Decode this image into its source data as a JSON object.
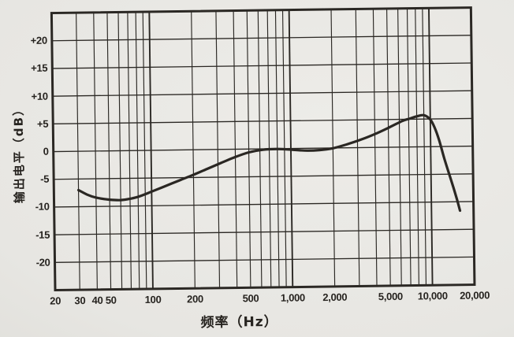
{
  "page": {
    "kind": "scanned textbook figure",
    "paper_color": "#e7e6e2",
    "ink_color": "#282521"
  },
  "chart_data": {
    "type": "line",
    "title": "",
    "xlabel": "频率（Hz）",
    "ylabel": "输出电平（dB）",
    "x_scale": "log",
    "x_range": [
      20,
      20000
    ],
    "y_range": [
      -25,
      25
    ],
    "y_gridline_step_db": 5,
    "grid": "both",
    "legend": "none",
    "line_color": "#2a2723",
    "grid_color": "#2b2824",
    "x_gridlines": [
      20,
      30,
      40,
      50,
      60,
      70,
      80,
      90,
      100,
      200,
      300,
      400,
      500,
      600,
      700,
      800,
      900,
      1000,
      2000,
      3000,
      4000,
      5000,
      6000,
      7000,
      8000,
      9000,
      10000,
      20000
    ],
    "x_decade_lines": [
      100,
      1000,
      10000
    ],
    "x_ticks": [
      {
        "value": 20,
        "label": "20"
      },
      {
        "value": 30,
        "label": "30"
      },
      {
        "value": 40,
        "label": "40"
      },
      {
        "value": 50,
        "label": "50"
      },
      {
        "value": 100,
        "label": "100"
      },
      {
        "value": 200,
        "label": "200"
      },
      {
        "value": 500,
        "label": "500"
      },
      {
        "value": 1000,
        "label": "1,000"
      },
      {
        "value": 2000,
        "label": "2,000"
      },
      {
        "value": 5000,
        "label": "5,000"
      },
      {
        "value": 10000,
        "label": "10,000"
      },
      {
        "value": 20000,
        "label": "20,000"
      }
    ],
    "y_ticks": [
      {
        "value": 20,
        "label": "+20"
      },
      {
        "value": 15,
        "label": "+15"
      },
      {
        "value": 10,
        "label": "+10"
      },
      {
        "value": 5,
        "label": "+5"
      },
      {
        "value": 0,
        "label": "0"
      },
      {
        "value": -5,
        "label": "-5"
      },
      {
        "value": -10,
        "label": "-10"
      },
      {
        "value": -15,
        "label": "-15"
      },
      {
        "value": -20,
        "label": "-20"
      }
    ],
    "series": [
      {
        "name": "output-level-frequency-response",
        "color": "#2a2723",
        "points": [
          [
            30,
            -7.0
          ],
          [
            35,
            -7.9
          ],
          [
            40,
            -8.4
          ],
          [
            50,
            -8.8
          ],
          [
            60,
            -8.9
          ],
          [
            70,
            -8.7
          ],
          [
            80,
            -8.35
          ],
          [
            90,
            -7.9
          ],
          [
            100,
            -7.45
          ],
          [
            125,
            -6.5
          ],
          [
            160,
            -5.45
          ],
          [
            200,
            -4.5
          ],
          [
            250,
            -3.5
          ],
          [
            315,
            -2.45
          ],
          [
            400,
            -1.4
          ],
          [
            500,
            -0.6
          ],
          [
            630,
            -0.15
          ],
          [
            800,
            -0.05
          ],
          [
            1000,
            -0.2
          ],
          [
            1250,
            -0.4
          ],
          [
            1600,
            -0.35
          ],
          [
            2000,
            -0.05
          ],
          [
            2500,
            0.6
          ],
          [
            3150,
            1.4
          ],
          [
            4000,
            2.4
          ],
          [
            5000,
            3.5
          ],
          [
            6300,
            4.7
          ],
          [
            7100,
            5.1
          ],
          [
            8000,
            5.5
          ],
          [
            9000,
            5.7
          ],
          [
            10000,
            4.9
          ],
          [
            10700,
            3.5
          ],
          [
            11500,
            1.2
          ],
          [
            12500,
            -2.2
          ],
          [
            13500,
            -5.0
          ],
          [
            14500,
            -7.6
          ],
          [
            15300,
            -9.7
          ],
          [
            16000,
            -11.6
          ]
        ]
      }
    ]
  }
}
